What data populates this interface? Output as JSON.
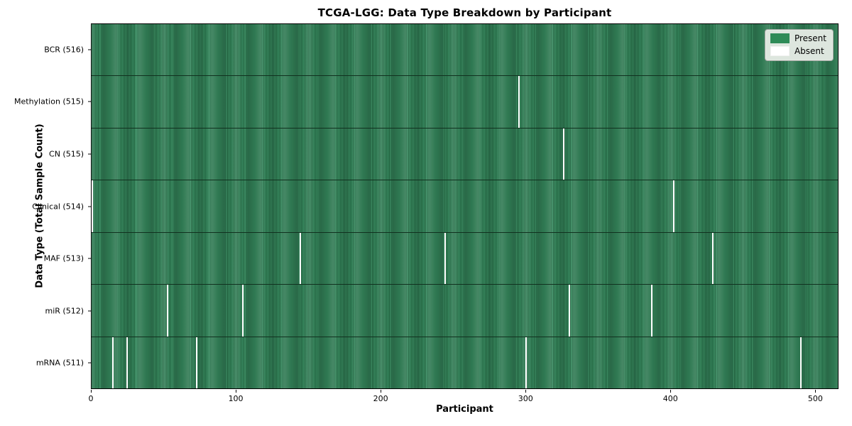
{
  "title": "TCGA-LGG: Data Type Breakdown by Participant",
  "legend": {
    "items": [
      {
        "label": "Present",
        "color": "#2e8b57",
        "border": "#2e8b57"
      },
      {
        "label": "Absent",
        "color": "#ffffff",
        "border": "#f2f2f2"
      }
    ]
  },
  "chart_data": {
    "type": "heatmap",
    "title": "TCGA-LGG: Data Type Breakdown by Participant",
    "xlabel": "Participant",
    "ylabel": "Data Type (Total Sample Count)",
    "n_participants": 516,
    "xlim": [
      0,
      516
    ],
    "x_ticks": [
      0,
      100,
      200,
      300,
      400,
      500
    ],
    "grid": false,
    "legend_position": "upper right",
    "colors": {
      "present": "#2e8b57",
      "absent": "#ffffff"
    },
    "rows": [
      {
        "label": "BCR (516)",
        "data_type": "BCR",
        "sample_count": 516,
        "absent_indices": []
      },
      {
        "label": "Methylation (515)",
        "data_type": "Methylation",
        "sample_count": 515,
        "absent_indices": [
          295
        ]
      },
      {
        "label": "CN (515)",
        "data_type": "CN",
        "sample_count": 515,
        "absent_indices": [
          326
        ]
      },
      {
        "label": "Clinical (514)",
        "data_type": "Clinical",
        "sample_count": 514,
        "absent_indices": [
          0,
          402
        ]
      },
      {
        "label": "MAF (513)",
        "data_type": "MAF",
        "sample_count": 513,
        "absent_indices": [
          144,
          244,
          429
        ]
      },
      {
        "label": "miR (512)",
        "data_type": "miR",
        "sample_count": 512,
        "absent_indices": [
          52,
          104,
          330,
          387
        ]
      },
      {
        "label": "mRNA (511)",
        "data_type": "mRNA",
        "sample_count": 511,
        "absent_indices": [
          14,
          24,
          72,
          300,
          490
        ]
      }
    ]
  }
}
